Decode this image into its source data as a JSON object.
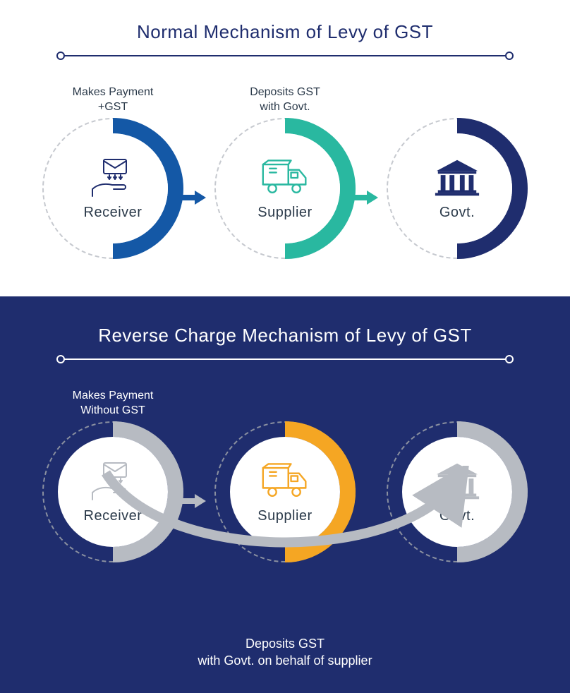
{
  "colors": {
    "navy": "#1f2d6e",
    "primary_blue": "#1458a6",
    "teal": "#29b8a0",
    "amber": "#f5a623",
    "grey": "#b7bbc2",
    "dark_grey": "#7c8089",
    "white": "#ffffff",
    "text_dark": "#2b3a4a"
  },
  "section_top": {
    "title": "Normal Mechanism of Levy of GST",
    "divider_color": "#1f2d6e",
    "nodes": [
      {
        "id": "receiver",
        "label": "Receiver",
        "top_text_lines": [
          "Makes Payment",
          "+GST"
        ],
        "accent_color": "#1458a6",
        "dashed_color": "#c6c9cf",
        "icon": "envelope-hand",
        "icon_color": "#1f2d6e",
        "label_color": "#2b3a4a"
      },
      {
        "id": "supplier",
        "label": "Supplier",
        "top_text_lines": [
          "Deposits GST",
          "with Govt."
        ],
        "accent_color": "#29b8a0",
        "dashed_color": "#c6c9cf",
        "icon": "truck",
        "icon_color": "#29b8a0",
        "label_color": "#2b3a4a"
      },
      {
        "id": "govt",
        "label": "Govt.",
        "top_text_lines": [
          "",
          ""
        ],
        "accent_color": "#1f2d6e",
        "dashed_color": "#c6c9cf",
        "icon": "govt",
        "icon_color": "#1f2d6e",
        "label_color": "#2b3a4a"
      }
    ],
    "arrows": [
      {
        "from": 0,
        "to": 1,
        "color": "#1458a6"
      },
      {
        "from": 1,
        "to": 2,
        "color": "#29b8a0"
      }
    ]
  },
  "section_bottom": {
    "title": "Reverse Charge Mechanism of Levy of GST",
    "divider_color": "#ffffff",
    "background": "#1f2d6e",
    "nodes": [
      {
        "id": "receiver",
        "label": "Receiver",
        "top_text_lines": [
          "Makes Payment",
          "Without GST"
        ],
        "accent_color": "#b7bbc2",
        "dashed_color": "#8a90a0",
        "icon": "envelope-hand",
        "icon_color": "#b7bbc2",
        "label_color": "#2b3a4a"
      },
      {
        "id": "supplier",
        "label": "Supplier",
        "top_text_lines": [
          "",
          ""
        ],
        "accent_color": "#f5a623",
        "dashed_color": "#8a90a0",
        "icon": "truck",
        "icon_color": "#f5a623",
        "label_color": "#2b3a4a"
      },
      {
        "id": "govt",
        "label": "Govt.",
        "top_text_lines": [
          "",
          ""
        ],
        "accent_color": "#b7bbc2",
        "dashed_color": "#8a90a0",
        "icon": "govt",
        "icon_color": "#b7bbc2",
        "label_color": "#2b3a4a"
      }
    ],
    "arrows": [
      {
        "from": 0,
        "to": 1,
        "color": "#b7bbc2"
      }
    ],
    "curved_arrow": {
      "from": 0,
      "to": 2,
      "color": "#b7bbc2"
    },
    "bottom_caption_lines": [
      "Deposits GST",
      "with Govt. on behalf of supplier"
    ]
  }
}
